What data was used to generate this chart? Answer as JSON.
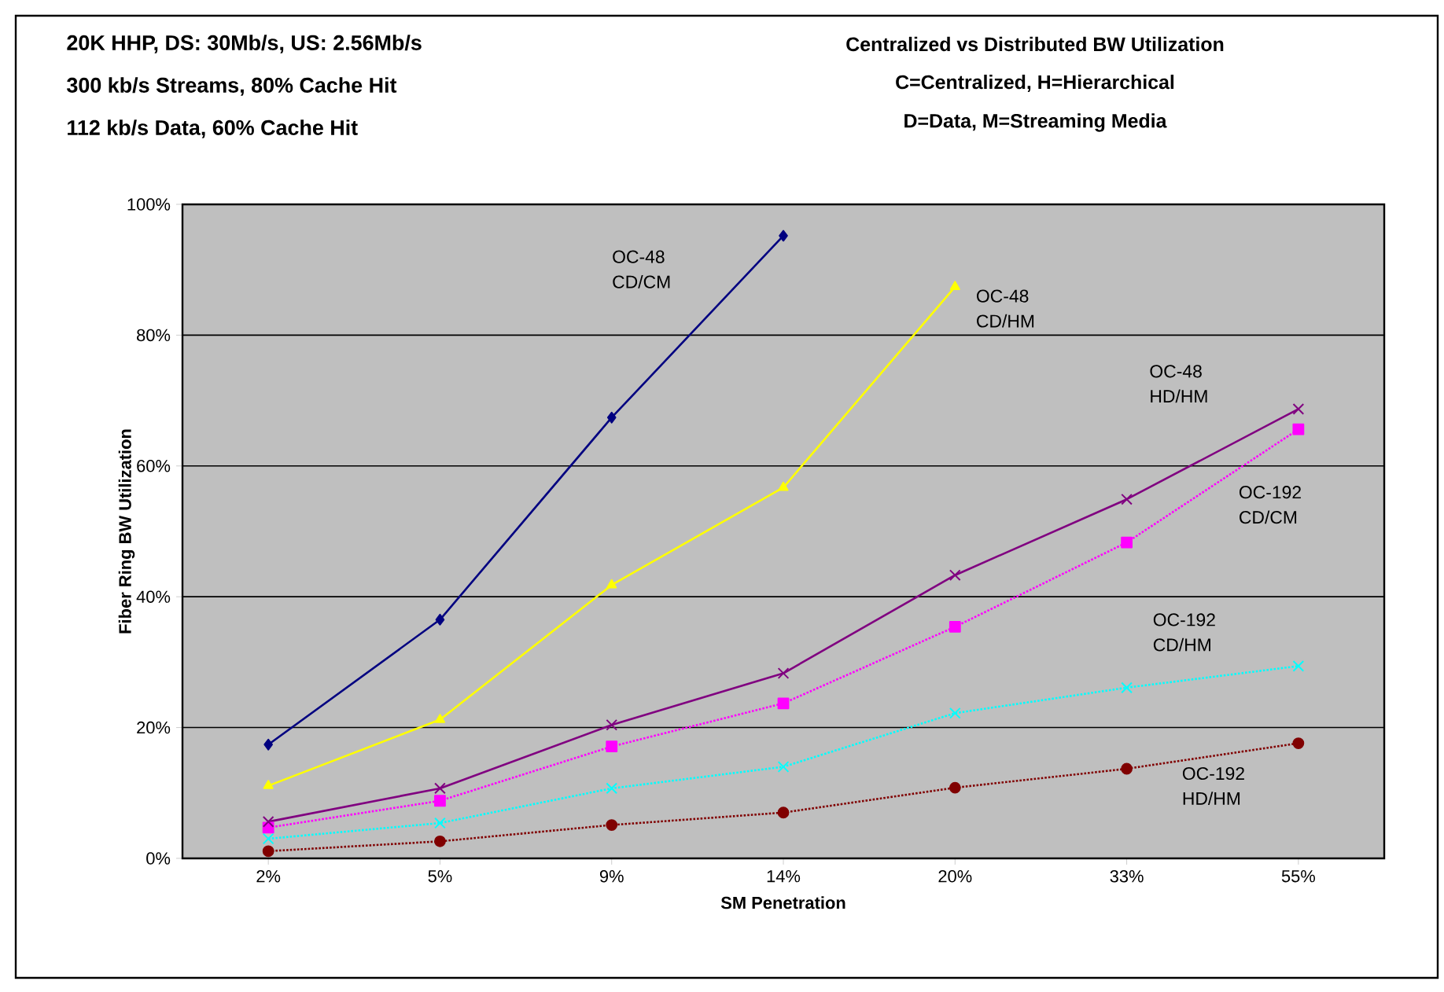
{
  "chart_data": {
    "type": "line",
    "title": "Centralized vs Distributed BW Utilization",
    "subtitle": "C=Centralized, H=Hierarchical",
    "annotations": [
      "20K HHP, DS: 30Mb/s, US: 2.56Mb/s",
      "300 kb/s Streams, 80% Cache Hit",
      "112 kb/s Data, 60% Cache Hit",
      "D=Data, M=Streaming Media"
    ],
    "xlabel": "SM Penetration",
    "ylabel": "Fiber Ring BW Utilization",
    "categories": [
      "2%",
      "5%",
      "9%",
      "14%",
      "20%",
      "33%",
      "55%"
    ],
    "ylim": [
      0,
      100
    ],
    "yticks": [
      {
        "value": 0,
        "label": "0%"
      },
      {
        "value": 20,
        "label": "20%"
      },
      {
        "value": 40,
        "label": "40%"
      },
      {
        "value": 60,
        "label": "60%"
      },
      {
        "value": 80,
        "label": "80%"
      },
      {
        "value": 100,
        "label": "100%"
      }
    ],
    "grid": "y",
    "series": [
      {
        "name": "OC-48 CD/CM",
        "color": "#000080",
        "marker": "diamond",
        "line_style": "solid",
        "values": [
          17.4,
          36.5,
          67.4,
          95.2,
          null,
          null,
          null
        ]
      },
      {
        "name": "OC-48 CD/HM",
        "color": "#ffff00",
        "marker": "triangle",
        "line_style": "solid",
        "values": [
          11.1,
          21.2,
          41.8,
          56.7,
          87.4,
          null,
          null
        ]
      },
      {
        "name": "OC-48 HD/HM",
        "color": "#800080",
        "marker": "cross",
        "line_style": "solid",
        "values": [
          5.6,
          10.7,
          20.4,
          28.3,
          43.3,
          54.9,
          68.7
        ]
      },
      {
        "name": "OC-192 CD/CM",
        "color": "#ff00ff",
        "marker": "square",
        "line_style": "dotted",
        "values": [
          4.7,
          8.8,
          17.1,
          23.7,
          35.4,
          48.3,
          65.6
        ]
      },
      {
        "name": "OC-192 CD/HM",
        "color": "#00ffff",
        "marker": "cross",
        "line_style": "dotted",
        "values": [
          3.0,
          5.4,
          10.7,
          14.0,
          22.2,
          26.1,
          29.4
        ]
      },
      {
        "name": "OC-192 HD/HM",
        "color": "#800000",
        "marker": "circle",
        "line_style": "dotted",
        "values": [
          1.1,
          2.6,
          5.1,
          7.0,
          10.8,
          13.7,
          17.6
        ]
      }
    ]
  }
}
